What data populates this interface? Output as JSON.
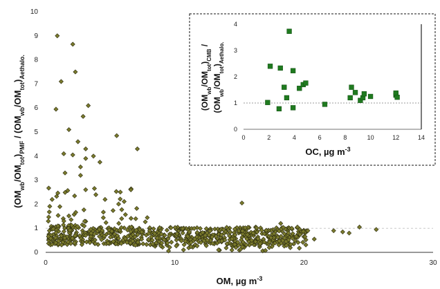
{
  "chart_data": [
    {
      "type": "scatter",
      "x_label": "OM, µg m",
      "x_label_sup": "-3",
      "y_label_parts": [
        {
          "t": "(OM",
          "b": false,
          "s": null
        },
        {
          "t": "wb",
          "b": true,
          "s": "sub"
        },
        {
          "t": "/OM",
          "b": false,
          "s": null
        },
        {
          "t": "tot",
          "b": true,
          "s": "sub"
        },
        {
          "t": ")",
          "b": false,
          "s": null
        },
        {
          "t": "PMF",
          "b": true,
          "s": "sub"
        },
        {
          "t": " / (OM",
          "b": false,
          "s": null
        },
        {
          "t": "wb",
          "b": true,
          "s": "sub"
        },
        {
          "t": "/OM",
          "b": false,
          "s": null
        },
        {
          "t": "tot",
          "b": true,
          "s": "sub"
        },
        {
          "t": ")",
          "b": false,
          "s": null
        },
        {
          "t": "Aethalo.",
          "b": true,
          "s": "sub"
        }
      ],
      "x_range": [
        0,
        30
      ],
      "y_range": [
        0,
        10
      ],
      "x_ticks": [
        "0",
        "10",
        "20",
        "30"
      ],
      "y_ticks": [
        "0",
        "1",
        "2",
        "3",
        "4",
        "5",
        "6",
        "7",
        "8",
        "9",
        "10"
      ],
      "reference_line_y": 1,
      "marker_color": "#7a7a2c",
      "marker_edge": "#2a2a10",
      "notable_points": [
        [
          0.9,
          9.0
        ],
        [
          1.2,
          7.1
        ],
        [
          0.8,
          5.95
        ],
        [
          2.1,
          8.65
        ],
        [
          2.3,
          7.5
        ],
        [
          1.8,
          5.1
        ],
        [
          3.3,
          6.1
        ],
        [
          2.9,
          5.65
        ],
        [
          5.5,
          4.85
        ],
        [
          7.1,
          4.3
        ],
        [
          2.5,
          4.6
        ],
        [
          2.1,
          4.05
        ],
        [
          1.4,
          4.1
        ],
        [
          3.1,
          4.3
        ],
        [
          4.2,
          3.75
        ],
        [
          3.7,
          4.0
        ],
        [
          2.7,
          3.55
        ],
        [
          3.1,
          3.9
        ],
        [
          1.5,
          3.3
        ],
        [
          2.7,
          3.2
        ],
        [
          15.2,
          2.05
        ],
        [
          6.6,
          2.6
        ],
        [
          4.6,
          2.2
        ],
        [
          0.5,
          2.2
        ],
        [
          1.1,
          1.9
        ],
        [
          22.3,
          0.9
        ],
        [
          23.0,
          0.85
        ],
        [
          23.5,
          0.8
        ],
        [
          24.3,
          1.05
        ],
        [
          25.6,
          0.95
        ],
        [
          20.8,
          0.55
        ],
        [
          20.3,
          0.9
        ],
        [
          19.5,
          1.05
        ],
        [
          18.2,
          1.2
        ]
      ],
      "generated_cluster": {
        "count": 760,
        "x_range": [
          0.2,
          20.2
        ],
        "y_typical": [
          0.3,
          1.3
        ],
        "seed": 12345
      }
    },
    {
      "type": "scatter",
      "x_label": "OC, µg m",
      "x_label_sup": "-3",
      "y_label_line1_parts": [
        {
          "t": "(OM",
          "b": false,
          "s": null
        },
        {
          "t": "wb",
          "b": true,
          "s": "sub"
        },
        {
          "t": "/OM",
          "b": false,
          "s": null
        },
        {
          "t": "tot",
          "b": true,
          "s": "sub"
        },
        {
          "t": ")",
          "b": false,
          "s": null
        },
        {
          "t": "CMB",
          "b": true,
          "s": "sub"
        },
        {
          "t": " /",
          "b": false,
          "s": null
        }
      ],
      "y_label_line2_parts": [
        {
          "t": "(OM",
          "b": false,
          "s": null
        },
        {
          "t": "wb",
          "b": true,
          "s": "sub"
        },
        {
          "t": "/OM",
          "b": false,
          "s": null
        },
        {
          "t": "tot",
          "b": true,
          "s": "sub"
        },
        {
          "t": ")",
          "b": false,
          "s": null
        },
        {
          "t": "Aethalo.",
          "b": true,
          "s": "sub"
        }
      ],
      "x_range": [
        0,
        14
      ],
      "y_range": [
        0,
        4
      ],
      "x_ticks": [
        "0",
        "2",
        "4",
        "6",
        "8",
        "10",
        "12",
        "14"
      ],
      "y_ticks": [
        "0",
        "1",
        "2",
        "3",
        "4"
      ],
      "reference_line_y": 1,
      "vertical_line_x": 14,
      "marker_color": "#1f7a1f",
      "points": [
        [
          1.9,
          1.02
        ],
        [
          2.1,
          2.4
        ],
        [
          2.8,
          0.78
        ],
        [
          2.9,
          2.33
        ],
        [
          3.2,
          1.6
        ],
        [
          3.4,
          1.2
        ],
        [
          3.6,
          3.73
        ],
        [
          3.9,
          0.82
        ],
        [
          3.9,
          2.23
        ],
        [
          4.4,
          1.56
        ],
        [
          4.7,
          1.7
        ],
        [
          4.9,
          1.76
        ],
        [
          6.4,
          0.95
        ],
        [
          8.4,
          1.2
        ],
        [
          8.5,
          1.6
        ],
        [
          8.8,
          1.4
        ],
        [
          9.2,
          1.1
        ],
        [
          9.4,
          1.2
        ],
        [
          9.5,
          1.35
        ],
        [
          10.0,
          1.25
        ],
        [
          12.0,
          1.3
        ],
        [
          12.0,
          1.38
        ],
        [
          12.1,
          1.22
        ]
      ]
    }
  ]
}
